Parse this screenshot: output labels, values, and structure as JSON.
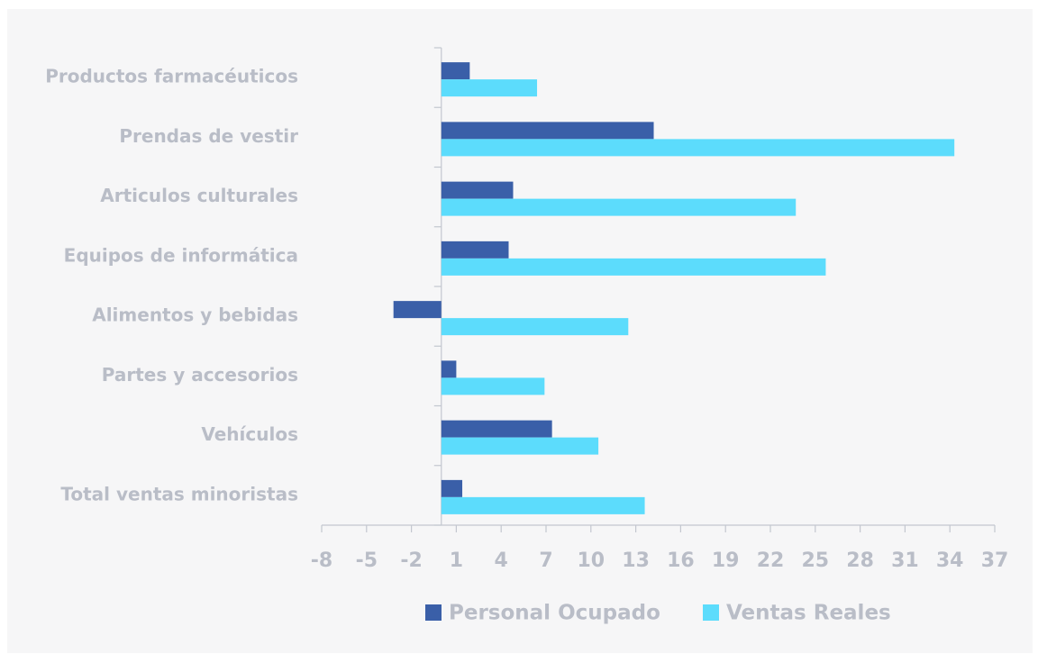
{
  "chart_data": {
    "type": "hbar",
    "categories": [
      "Productos farmacéuticos",
      "Prendas de vestir",
      "Articulos culturales",
      "Equipos de informática",
      "Alimentos y bebidas",
      "Partes y accesorios",
      "Vehículos",
      "Total ventas minoristas"
    ],
    "series": [
      {
        "name": "Personal Ocupado",
        "color": "#3a5fa8",
        "values": [
          1.9,
          14.2,
          4.8,
          4.5,
          -3.2,
          1.0,
          7.4,
          1.4
        ]
      },
      {
        "name": "Ventas Reales",
        "color": "#5cdcfc",
        "values": [
          6.4,
          34.3,
          23.7,
          25.7,
          12.5,
          6.9,
          10.5,
          13.6
        ]
      }
    ],
    "xlim": [
      -8,
      37
    ],
    "xticks": [
      -8,
      -5,
      -2,
      1,
      4,
      7,
      10,
      13,
      16,
      19,
      22,
      25,
      28,
      31,
      34,
      37
    ],
    "legend": "bottom"
  }
}
